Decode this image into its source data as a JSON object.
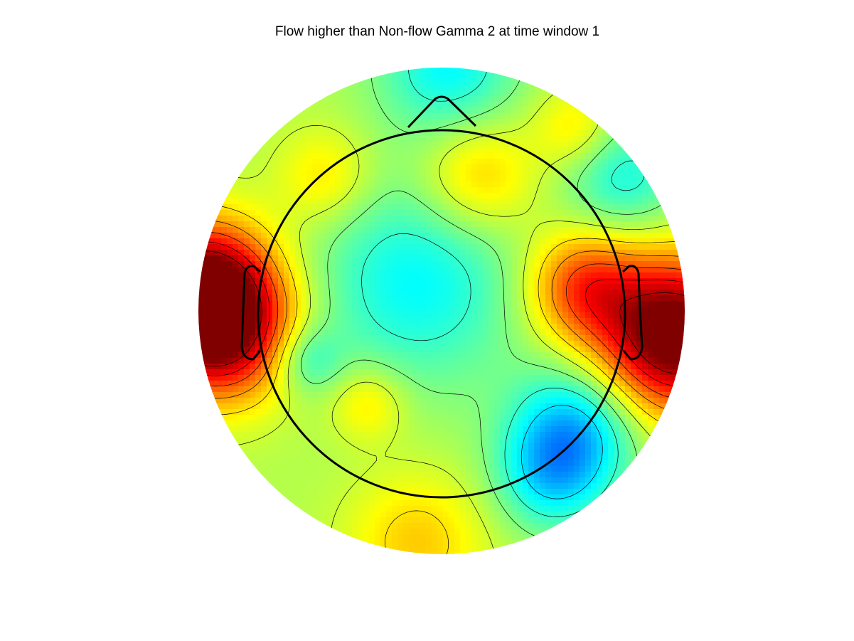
{
  "chart_data": {
    "type": "heatmap",
    "subtype": "scalp-topography",
    "title": "Flow higher than Non-flow Gamma 2 at time window 1",
    "colormap": "jet",
    "colorbar": false,
    "orientation": "nose-up",
    "scale": [
      -1,
      1
    ],
    "baseline": 0.1,
    "sources": [
      {
        "name": "left-temporal",
        "pos": [
          -0.98,
          0.07
        ],
        "value": 1.0,
        "spread": 0.2
      },
      {
        "name": "left-temporal-lower",
        "pos": [
          -0.9,
          -0.1
        ],
        "value": 0.6,
        "spread": 0.2
      },
      {
        "name": "right-temporal",
        "pos": [
          0.96,
          -0.1
        ],
        "value": 1.05,
        "spread": 0.22
      },
      {
        "name": "right-central",
        "pos": [
          0.58,
          0.1
        ],
        "value": 0.5,
        "spread": 0.16
      },
      {
        "name": "frontal-right",
        "pos": [
          0.15,
          0.55
        ],
        "value": 0.3,
        "spread": 0.17
      },
      {
        "name": "frontal-left",
        "pos": [
          -0.48,
          0.55
        ],
        "value": 0.22,
        "spread": 0.14
      },
      {
        "name": "occipital-left",
        "pos": [
          -0.3,
          -0.38
        ],
        "value": 0.22,
        "spread": 0.11
      },
      {
        "name": "occipital",
        "pos": [
          -0.1,
          -0.95
        ],
        "value": 0.25,
        "spread": 0.2
      },
      {
        "name": "right-frontal-high",
        "pos": [
          0.55,
          0.75
        ],
        "value": 0.22,
        "spread": 0.12
      },
      {
        "name": "nasion",
        "pos": [
          0.03,
          1.0
        ],
        "value": -0.35,
        "spread": 0.2
      },
      {
        "name": "right-frontal-lateral",
        "pos": [
          0.75,
          0.55
        ],
        "value": -0.3,
        "spread": 0.17
      },
      {
        "name": "central",
        "pos": [
          -0.1,
          0.12
        ],
        "value": -0.35,
        "spread": 0.3
      },
      {
        "name": "right-parietal",
        "pos": [
          0.55,
          -0.48
        ],
        "value": -0.45,
        "spread": 0.18
      },
      {
        "name": "right-occipital",
        "pos": [
          0.45,
          -0.68
        ],
        "value": -0.35,
        "spread": 0.16
      },
      {
        "name": "left-parietal",
        "pos": [
          -0.55,
          -0.2
        ],
        "value": -0.25,
        "spread": 0.1
      }
    ]
  }
}
